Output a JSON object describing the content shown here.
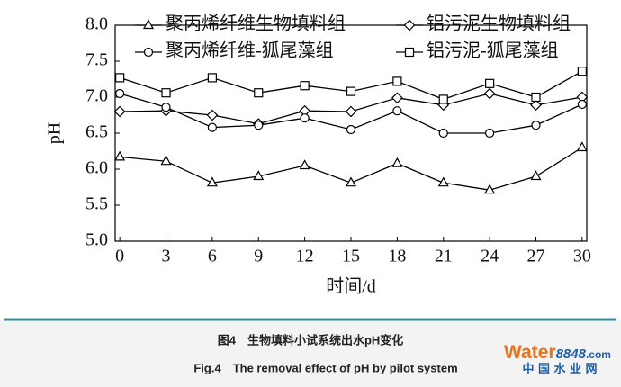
{
  "chart_data": {
    "type": "line",
    "x_label": "时间/d",
    "y_label": "pH",
    "x": [
      0,
      3,
      6,
      9,
      12,
      15,
      18,
      21,
      24,
      27,
      30
    ],
    "xlim": [
      -0.3,
      30.3
    ],
    "xticks": [
      0,
      3,
      6,
      9,
      12,
      15,
      18,
      21,
      24,
      27,
      30
    ],
    "ylim": [
      5,
      8
    ],
    "yticks": [
      {
        "value": 5,
        "label": "5.0"
      },
      5.5,
      {
        "value": 6,
        "label": "6.0"
      },
      6.5,
      {
        "value": 7,
        "label": "7.0"
      },
      7.5,
      {
        "value": 8,
        "label": "8.0"
      }
    ],
    "series": [
      {
        "name": "聚丙烯纤维生物填料组",
        "color": "#000000",
        "marker": "triangle",
        "values": [
          6.17,
          6.11,
          5.81,
          5.9,
          6.05,
          5.81,
          6.08,
          5.81,
          5.71,
          5.9,
          6.3
        ]
      },
      {
        "name": "铝污泥生物填料组",
        "color": "#000000",
        "marker": "diamond",
        "values": [
          6.8,
          6.81,
          6.75,
          6.63,
          6.81,
          6.8,
          6.99,
          6.89,
          7.05,
          6.89,
          7.0
        ]
      },
      {
        "name": "聚丙烯纤维-狐尾藻组",
        "color": "#000000",
        "marker": "circle",
        "values": [
          7.05,
          6.86,
          6.58,
          6.61,
          6.71,
          6.55,
          6.81,
          6.5,
          6.5,
          6.61,
          6.9
        ]
      },
      {
        "name": "铝污泥-狐尾藻组",
        "color": "#000000",
        "marker": "square",
        "values": [
          7.27,
          7.06,
          7.27,
          7.06,
          7.16,
          7.08,
          7.22,
          6.97,
          7.19,
          7.0,
          7.36
        ]
      }
    ]
  },
  "caption": {
    "cn": "图4　生物填料小试系统出水pH变化",
    "en": "Fig.4　The removal effect of pH by pilot system"
  },
  "logo": {
    "brand": "Water",
    "number": "8848",
    "domain": ".com",
    "subtitle": "中 国 水 业 网"
  }
}
